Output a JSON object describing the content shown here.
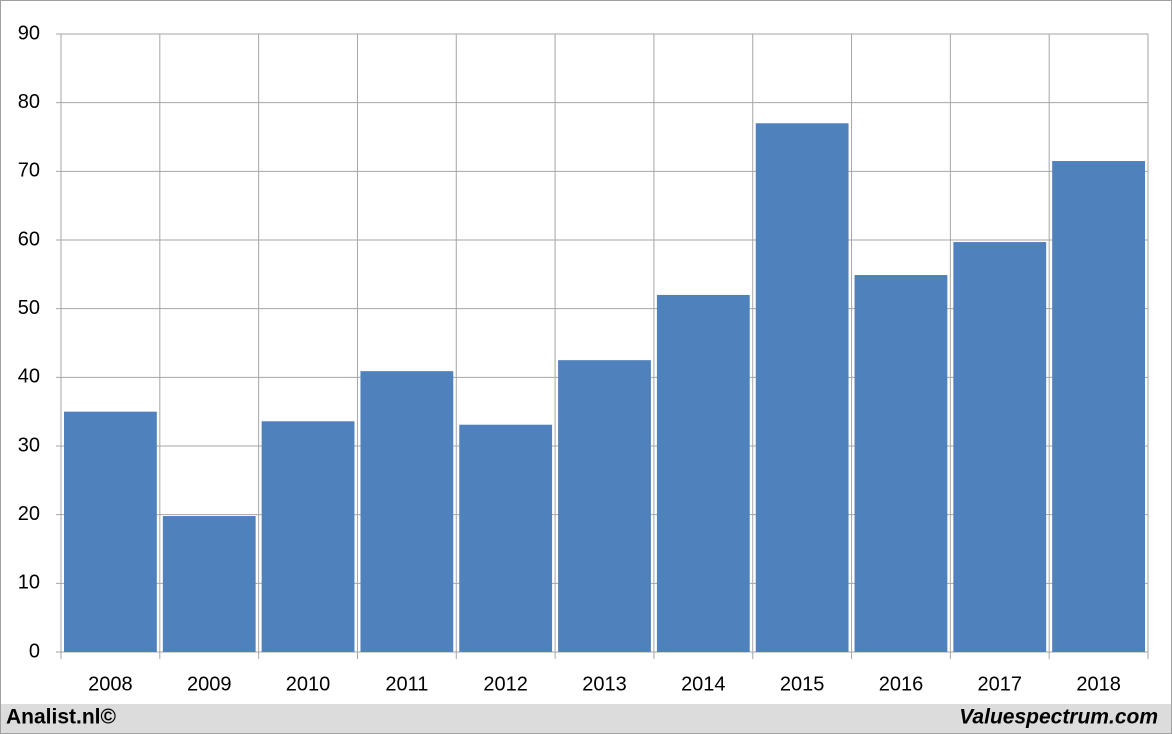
{
  "chart_data": {
    "type": "bar",
    "categories": [
      "2008",
      "2009",
      "2010",
      "2011",
      "2012",
      "2013",
      "2014",
      "2015",
      "2016",
      "2017",
      "2018"
    ],
    "values": [
      35,
      19.8,
      33.6,
      40.9,
      33.1,
      42.5,
      52,
      77,
      54.9,
      59.7,
      71.5
    ],
    "color": "#4f81bd",
    "ylim": [
      0,
      90
    ],
    "yticks": [
      0,
      10,
      20,
      30,
      40,
      50,
      60,
      70,
      80,
      90
    ],
    "grid": true,
    "annotations": [
      "Analist.nl©",
      "Valuespectrum.com"
    ]
  }
}
